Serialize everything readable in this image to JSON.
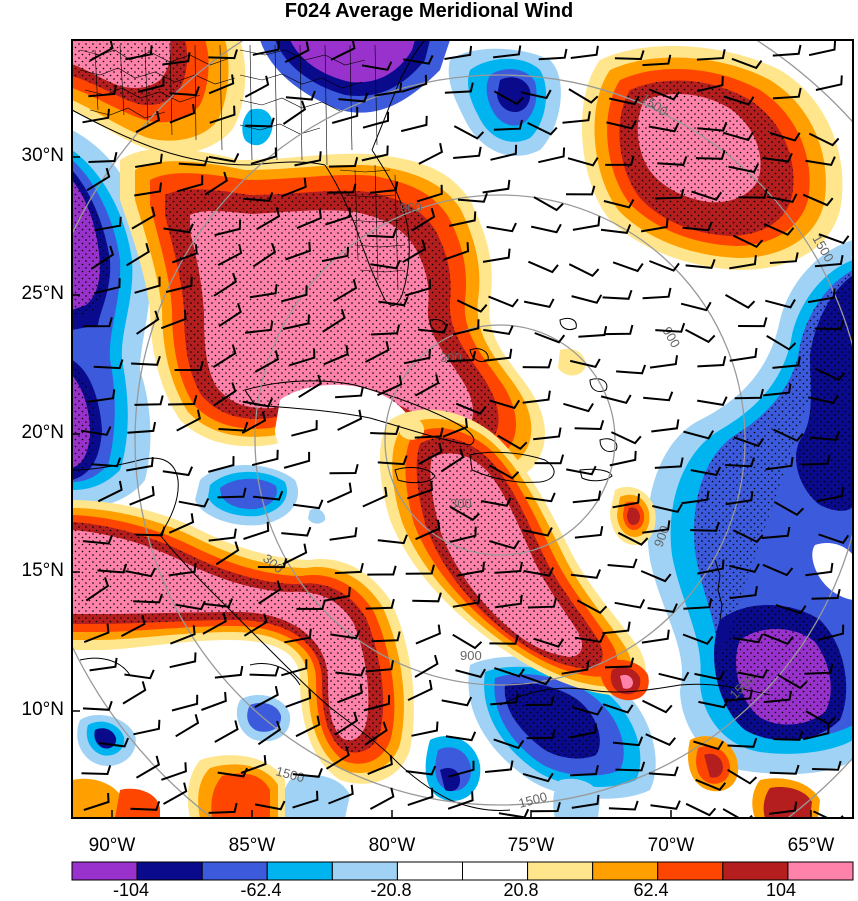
{
  "title": "F024 Average Meridional Wind",
  "lat_labels": [
    "30°N",
    "25°N",
    "20°N",
    "15°N",
    "10°N"
  ],
  "lon_labels": [
    "90°W",
    "85°W",
    "80°W",
    "75°W",
    "70°W",
    "65°W"
  ],
  "colorbar": {
    "colors": [
      "#9932cc",
      "#0a0a8c",
      "#3c5adc",
      "#00b4f0",
      "#a0d2f5",
      "#ffffff",
      "#ffffff",
      "#ffe68c",
      "#ffa000",
      "#ff4600",
      "#b41e1e",
      "#ff82aa"
    ],
    "labels": [
      "-104",
      "-62.4",
      "-20.8",
      "20.8",
      "62.4",
      "104"
    ]
  },
  "contour_labels": [
    "300",
    "300",
    "300",
    "900",
    "900",
    "900",
    "900",
    "1500",
    "1500",
    "1500",
    "1500",
    "1500"
  ]
}
